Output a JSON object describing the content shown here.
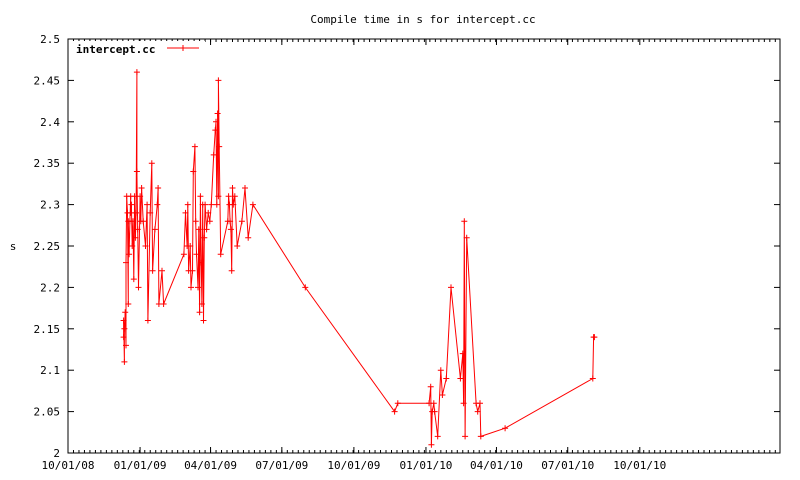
{
  "chart_data": {
    "type": "line",
    "title": "Compile time in s for intercept.cc",
    "xlabel": "",
    "ylabel": "s",
    "xlim": [
      "2008-10-01",
      "2011-03-29"
    ],
    "ylim": [
      2.0,
      2.5
    ],
    "x_tick_labels": [
      "10/01/08",
      "01/01/09",
      "04/01/09",
      "07/01/09",
      "10/01/09",
      "01/01/10",
      "04/01/10",
      "07/01/10",
      "10/01/10"
    ],
    "x_tick_dates": [
      "2008-10-01",
      "2009-01-01",
      "2009-04-01",
      "2009-07-01",
      "2009-10-01",
      "2010-01-01",
      "2010-04-01",
      "2010-07-01",
      "2010-10-01"
    ],
    "y_ticks": [
      2.0,
      2.05,
      2.1,
      2.15,
      2.2,
      2.25,
      2.3,
      2.35,
      2.4,
      2.45,
      2.5
    ],
    "y_tick_labels": [
      "2",
      "2.05",
      "2.1",
      "2.15",
      "2.2",
      "2.25",
      "2.3",
      "2.35",
      "2.4",
      "2.45",
      "2.5"
    ],
    "grid": false,
    "legend_position": "top-left",
    "color": "#ff0000",
    "series": [
      {
        "name": "intercept.cc",
        "points": [
          [
            "2008-12-11",
            2.14
          ],
          [
            "2008-12-11",
            2.16
          ],
          [
            "2008-12-12",
            2.11
          ],
          [
            "2008-12-12",
            2.15
          ],
          [
            "2008-12-13",
            2.17
          ],
          [
            "2008-12-14",
            2.13
          ],
          [
            "2008-12-14",
            2.23
          ],
          [
            "2008-12-15",
            2.31
          ],
          [
            "2008-12-16",
            2.29
          ],
          [
            "2008-12-17",
            2.18
          ],
          [
            "2008-12-17",
            2.28
          ],
          [
            "2008-12-18",
            2.24
          ],
          [
            "2008-12-19",
            2.28
          ],
          [
            "2008-12-20",
            2.31
          ],
          [
            "2008-12-20",
            2.29
          ],
          [
            "2008-12-21",
            2.3
          ],
          [
            "2008-12-22",
            2.25
          ],
          [
            "2008-12-23",
            2.28
          ],
          [
            "2008-12-24",
            2.21
          ],
          [
            "2008-12-25",
            2.31
          ],
          [
            "2008-12-26",
            2.26
          ],
          [
            "2008-12-27",
            2.29
          ],
          [
            "2008-12-28",
            2.46
          ],
          [
            "2008-12-28",
            2.34
          ],
          [
            "2008-12-29",
            2.27
          ],
          [
            "2008-12-30",
            2.2
          ],
          [
            "2009-01-01",
            2.31
          ],
          [
            "2009-01-02",
            2.28
          ],
          [
            "2009-01-03",
            2.32
          ],
          [
            "2009-01-05",
            2.28
          ],
          [
            "2009-01-08",
            2.25
          ],
          [
            "2009-01-10",
            2.3
          ],
          [
            "2009-01-11",
            2.16
          ],
          [
            "2009-01-14",
            2.29
          ],
          [
            "2009-01-16",
            2.35
          ],
          [
            "2009-01-17",
            2.22
          ],
          [
            "2009-01-20",
            2.27
          ],
          [
            "2009-01-23",
            2.3
          ],
          [
            "2009-01-24",
            2.32
          ],
          [
            "2009-01-25",
            2.18
          ],
          [
            "2009-01-29",
            2.22
          ],
          [
            "2009-01-31",
            2.18
          ],
          [
            "2009-02-26",
            2.24
          ],
          [
            "2009-02-28",
            2.29
          ],
          [
            "2009-03-02",
            2.25
          ],
          [
            "2009-03-03",
            2.3
          ],
          [
            "2009-03-04",
            2.22
          ],
          [
            "2009-03-06",
            2.25
          ],
          [
            "2009-03-07",
            2.2
          ],
          [
            "2009-03-09",
            2.22
          ],
          [
            "2009-03-10",
            2.34
          ],
          [
            "2009-03-12",
            2.37
          ],
          [
            "2009-03-13",
            2.28
          ],
          [
            "2009-03-14",
            2.24
          ],
          [
            "2009-03-16",
            2.2
          ],
          [
            "2009-03-17",
            2.27
          ],
          [
            "2009-03-18",
            2.17
          ],
          [
            "2009-03-19",
            2.31
          ],
          [
            "2009-03-20",
            2.23
          ],
          [
            "2009-03-21",
            2.18
          ],
          [
            "2009-03-22",
            2.3
          ],
          [
            "2009-03-23",
            2.16
          ],
          [
            "2009-03-24",
            2.26
          ],
          [
            "2009-03-25",
            2.3
          ],
          [
            "2009-03-27",
            2.27
          ],
          [
            "2009-03-29",
            2.29
          ],
          [
            "2009-03-31",
            2.28
          ],
          [
            "2009-04-02",
            2.3
          ],
          [
            "2009-04-05",
            2.36
          ],
          [
            "2009-04-07",
            2.39
          ],
          [
            "2009-04-08",
            2.4
          ],
          [
            "2009-04-09",
            2.3
          ],
          [
            "2009-04-10",
            2.41
          ],
          [
            "2009-04-11",
            2.31
          ],
          [
            "2009-04-11",
            2.45
          ],
          [
            "2009-04-12",
            2.37
          ],
          [
            "2009-04-14",
            2.24
          ],
          [
            "2009-04-23",
            2.28
          ],
          [
            "2009-04-24",
            2.31
          ],
          [
            "2009-04-25",
            2.3
          ],
          [
            "2009-04-26",
            2.28
          ],
          [
            "2009-04-27",
            2.27
          ],
          [
            "2009-04-28",
            2.22
          ],
          [
            "2009-04-29",
            2.32
          ],
          [
            "2009-04-30",
            2.3
          ],
          [
            "2009-05-02",
            2.31
          ],
          [
            "2009-05-05",
            2.25
          ],
          [
            "2009-05-11",
            2.28
          ],
          [
            "2009-05-15",
            2.32
          ],
          [
            "2009-05-19",
            2.26
          ],
          [
            "2009-05-25",
            2.3
          ],
          [
            "2009-07-31",
            2.2
          ],
          [
            "2009-11-22",
            2.05
          ],
          [
            "2009-11-26",
            2.06
          ],
          [
            "2010-01-05",
            2.06
          ],
          [
            "2010-01-07",
            2.08
          ],
          [
            "2010-01-08",
            2.01
          ],
          [
            "2010-01-09",
            2.05
          ],
          [
            "2010-01-11",
            2.06
          ],
          [
            "2010-01-12",
            2.05
          ],
          [
            "2010-01-16",
            2.02
          ],
          [
            "2010-01-20",
            2.1
          ],
          [
            "2010-01-22",
            2.07
          ],
          [
            "2010-01-27",
            2.09
          ],
          [
            "2010-02-02",
            2.2
          ],
          [
            "2010-02-14",
            2.09
          ],
          [
            "2010-02-17",
            2.12
          ],
          [
            "2010-02-18",
            2.06
          ],
          [
            "2010-02-19",
            2.28
          ],
          [
            "2010-02-20",
            2.02
          ],
          [
            "2010-02-22",
            2.26
          ],
          [
            "2010-03-06",
            2.06
          ],
          [
            "2010-03-08",
            2.05
          ],
          [
            "2010-03-11",
            2.06
          ],
          [
            "2010-03-12",
            2.02
          ],
          [
            "2010-04-12",
            2.03
          ],
          [
            "2010-08-02",
            2.09
          ],
          [
            "2010-08-03",
            2.14
          ],
          [
            "2010-08-04",
            2.14
          ]
        ]
      }
    ]
  }
}
